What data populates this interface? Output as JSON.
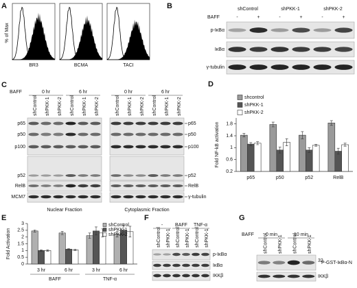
{
  "panels": {
    "A": {
      "letter": "A",
      "ylabel": "% of Max",
      "plots": [
        "BR3",
        "BCMA",
        "TACI"
      ]
    },
    "B": {
      "letter": "B",
      "treatment": "BAFF",
      "groups": [
        "shControl",
        "shPKK-1",
        "shPKK-2"
      ],
      "signs": [
        "-",
        "+",
        "-",
        "+",
        "-",
        "+"
      ],
      "rows": [
        "p-IκBα",
        "IκBα",
        "γ-tubulin"
      ]
    },
    "C": {
      "letter": "C",
      "treatment": "BAFF",
      "times": [
        "0 hr",
        "6 hr",
        "0 hr",
        "6 hr"
      ],
      "lanes": [
        "shControl",
        "shPKK-1",
        "shPKK-2"
      ],
      "left_rows": [
        "p65",
        "p50",
        "p100",
        "p52",
        "RelB",
        "MCM7"
      ],
      "right_rows": [
        "p65",
        "p50",
        "p100",
        "p52",
        "RelB",
        "γ-tubulin"
      ],
      "fractions": [
        "Nuclear Fraction",
        "Cytoplasmic Fraction"
      ]
    },
    "F": {
      "letter": "F",
      "conditions": [
        "-",
        "BAFF",
        "TNF-α"
      ],
      "lanes": [
        "shControl",
        "shPKK-1"
      ],
      "rows": [
        "p-IκBα",
        "IκBα",
        "IKKβ"
      ]
    },
    "G": {
      "letter": "G",
      "treatment": "BAFF",
      "times": [
        "0  min",
        "10 min"
      ],
      "lanes": [
        "shControl",
        "shPKK-1"
      ],
      "rows": [
        {
          "sup": "32",
          "label": "P-GST-IκBα-N"
        },
        "IKKβ"
      ]
    }
  },
  "chart_data": [
    {
      "type": "bar",
      "letter": "D",
      "ylabel": "Fold NF-kB activation",
      "categories": [
        "p65",
        "p50",
        "p52",
        "RelB"
      ],
      "series": [
        {
          "name": "shcontrol",
          "color": "#9a9a9a",
          "values": [
            1.42,
            1.78,
            1.42,
            1.83
          ],
          "errors": [
            0.06,
            0.08,
            0.12,
            0.08
          ]
        },
        {
          "name": "shPKK-1",
          "color": "#555555",
          "values": [
            1.12,
            0.92,
            0.92,
            0.88
          ],
          "errors": [
            0.05,
            0.1,
            0.08,
            0.1
          ]
        },
        {
          "name": "shPKK-2",
          "color": "#ffffff",
          "values": [
            1.15,
            1.18,
            1.08,
            1.1
          ],
          "errors": [
            0.05,
            0.12,
            0.03,
            0.05
          ]
        }
      ],
      "ylim": [
        0.2,
        2.0
      ],
      "yticks": [
        0.2,
        0.6,
        1,
        1.4,
        1.8
      ],
      "legend": "top"
    },
    {
      "type": "bar",
      "letter": "E",
      "ylabel": "Fold Activation",
      "categories": [
        "3 hr",
        "6 hr",
        "3 hr",
        "6 hr"
      ],
      "groups": [
        "BAFF",
        "TNF-α"
      ],
      "series": [
        {
          "name": "shControl",
          "color": "#b0b0b0",
          "values": [
            2.45,
            2.3,
            2.1,
            2.2
          ],
          "errors": [
            0.08,
            0.12,
            0.2,
            0.2
          ]
        },
        {
          "name": "shPKK-1",
          "color": "#555555",
          "values": [
            1.0,
            1.1,
            2.45,
            2.5
          ],
          "errors": [
            0.05,
            0.05,
            0.3,
            0.35
          ]
        },
        {
          "name": "shPKK-2",
          "color": "#ffffff",
          "values": [
            1.0,
            1.05,
            2.3,
            2.4
          ],
          "errors": [
            0.05,
            0.05,
            0.3,
            0.4
          ]
        }
      ],
      "ylim": [
        0,
        3
      ],
      "yticks": [
        0,
        0.5,
        1,
        1.5,
        2,
        2.5,
        3
      ],
      "legend": "top-right"
    }
  ]
}
